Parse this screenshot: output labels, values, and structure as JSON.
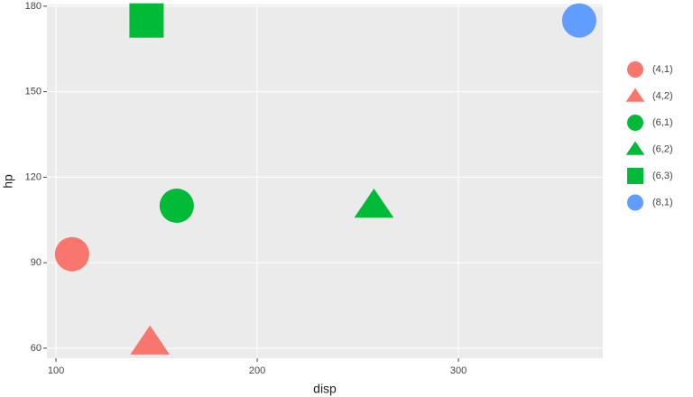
{
  "chart_data": {
    "type": "scatter",
    "x_label": "disp",
    "y_label": "hp",
    "xlim": [
      95.5,
      371.7
    ],
    "ylim": [
      56.5,
      180.6
    ],
    "xticks": [
      100,
      200,
      300
    ],
    "yticks": [
      60,
      90,
      120,
      150,
      180
    ],
    "grid": true,
    "legend": "right",
    "series": [
      {
        "name": "(4,1)",
        "color": "#F8766D",
        "symbol": "circle",
        "x": [
          108
        ],
        "values": [
          93
        ]
      },
      {
        "name": "(4,2)",
        "color": "#F8766D",
        "symbol": "triangle",
        "x": [
          146.7
        ],
        "values": [
          62
        ]
      },
      {
        "name": "(6,1)",
        "color": "#00BA38",
        "symbol": "circle",
        "x": [
          160
        ],
        "values": [
          110
        ]
      },
      {
        "name": "(6,2)",
        "color": "#00BA38",
        "symbol": "triangle",
        "x": [
          258
        ],
        "values": [
          110
        ]
      },
      {
        "name": "(6,3)",
        "color": "#00BA38",
        "symbol": "square",
        "x": [
          145
        ],
        "values": [
          175
        ]
      },
      {
        "name": "(8,1)",
        "color": "#619CFF",
        "symbol": "circle",
        "x": [
          360
        ],
        "values": [
          175
        ]
      }
    ]
  }
}
